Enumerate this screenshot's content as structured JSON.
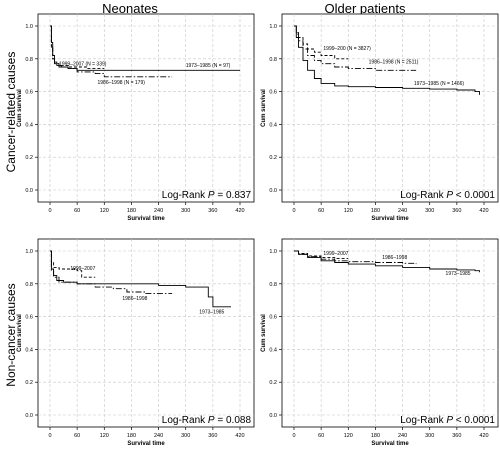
{
  "column_titles": [
    "Neonates",
    "Older patients"
  ],
  "row_titles": [
    "Cancer-related causes",
    "Non-cancer causes"
  ],
  "chart_data": [
    {
      "type": "line",
      "panel": "Neonates / Cancer-related causes",
      "xlabel": "Survival time",
      "ylabel": "Cum survival",
      "xlim": [
        0,
        420
      ],
      "ylim": [
        0,
        1.0
      ],
      "xticks": [
        0,
        60,
        120,
        180,
        240,
        300,
        360,
        420
      ],
      "yticks": [
        0.0,
        0.2,
        0.4,
        0.6,
        0.8,
        1.0
      ],
      "ytick_labels": [
        "0.0",
        "0.2",
        "0.4",
        "0.6",
        "0.8",
        "1.0"
      ],
      "grid": true,
      "annotation": {
        "prefix": "Log-Rank ",
        "p": "P",
        "suffix": " = 0.837"
      },
      "series": [
        {
          "name": "1973–1985 (N = 97)",
          "style": "solid",
          "x": [
            0,
            3,
            6,
            10,
            15,
            25,
            40,
            60,
            420
          ],
          "y": [
            1.0,
            0.9,
            0.82,
            0.78,
            0.76,
            0.75,
            0.74,
            0.73,
            0.73
          ]
        },
        {
          "name": "1986–1998 (N = 179)",
          "style": "dashdot",
          "x": [
            0,
            3,
            6,
            10,
            20,
            40,
            60,
            100,
            120,
            270
          ],
          "y": [
            1.0,
            0.88,
            0.8,
            0.77,
            0.75,
            0.74,
            0.72,
            0.71,
            0.69,
            0.69
          ]
        },
        {
          "name": "1999–2007 (N = 339)",
          "style": "dashed",
          "x": [
            0,
            3,
            6,
            10,
            20,
            40,
            80,
            120
          ],
          "y": [
            1.0,
            0.87,
            0.8,
            0.77,
            0.76,
            0.75,
            0.74,
            0.74
          ]
        }
      ],
      "labels": [
        {
          "text": "1999–2007 (N = 339)",
          "x": 20,
          "y": 0.76
        },
        {
          "text": "1986–1998 (N = 179)",
          "x": 105,
          "y": 0.645
        },
        {
          "text": "1973–1985 (N = 97)",
          "x": 300,
          "y": 0.75
        }
      ]
    },
    {
      "type": "line",
      "panel": "Older patients / Cancer-related causes",
      "xlabel": "Survival time",
      "ylabel": "Cum survival",
      "xlim": [
        0,
        420
      ],
      "ylim": [
        0,
        1.0
      ],
      "xticks": [
        0,
        60,
        120,
        180,
        240,
        300,
        360,
        420
      ],
      "yticks": [
        0.0,
        0.2,
        0.4,
        0.6,
        0.8,
        1.0
      ],
      "ytick_labels": [
        "0.0",
        "0.2",
        "0.4",
        "0.6",
        "0.8",
        "1.0"
      ],
      "grid": true,
      "annotation": {
        "prefix": "Log-Rank ",
        "p": "P",
        "suffix": " < 0.0001"
      },
      "series": [
        {
          "name": "1973–1985 (N = 1466)",
          "style": "solid",
          "x": [
            0,
            5,
            10,
            20,
            30,
            45,
            60,
            90,
            120,
            180,
            240,
            300,
            360,
            400,
            410
          ],
          "y": [
            1.0,
            0.93,
            0.87,
            0.79,
            0.73,
            0.68,
            0.65,
            0.635,
            0.63,
            0.625,
            0.62,
            0.615,
            0.61,
            0.6,
            0.58
          ]
        },
        {
          "name": "1986–1998 (N = 2511)",
          "style": "dashdot",
          "x": [
            0,
            5,
            10,
            20,
            30,
            45,
            60,
            90,
            120,
            180,
            240,
            270
          ],
          "y": [
            1.0,
            0.95,
            0.91,
            0.86,
            0.82,
            0.79,
            0.77,
            0.75,
            0.74,
            0.73,
            0.73,
            0.73
          ]
        },
        {
          "name": "1999–200 (N = 3827)",
          "style": "dashed",
          "x": [
            0,
            5,
            10,
            20,
            30,
            45,
            60,
            90,
            100,
            120
          ],
          "y": [
            1.0,
            0.96,
            0.93,
            0.89,
            0.86,
            0.84,
            0.82,
            0.8,
            0.8,
            0.8
          ]
        }
      ],
      "labels": [
        {
          "text": "1999–200 (N = 3827)",
          "x": 65,
          "y": 0.855
        },
        {
          "text": "1986–1998 (N = 2511)",
          "x": 165,
          "y": 0.77
        },
        {
          "text": "1973–1985 (N = 1466)",
          "x": 265,
          "y": 0.64
        }
      ]
    },
    {
      "type": "line",
      "panel": "Neonates / Non-cancer causes",
      "xlabel": "Survival time",
      "ylabel": "Cum survival",
      "xlim": [
        0,
        420
      ],
      "ylim": [
        0,
        1.0
      ],
      "xticks": [
        0,
        60,
        120,
        180,
        240,
        300,
        360,
        420
      ],
      "yticks": [
        0.0,
        0.2,
        0.4,
        0.6,
        0.8,
        1.0
      ],
      "ytick_labels": [
        "0.0",
        "0.2",
        "0.4",
        "0.6",
        "0.8",
        "1.0"
      ],
      "grid": true,
      "annotation": {
        "prefix": "Log-Rank ",
        "p": "P",
        "suffix": " = 0.088"
      },
      "series": [
        {
          "name": "1973–1985",
          "style": "solid",
          "x": [
            0,
            3,
            8,
            15,
            30,
            60,
            120,
            180,
            240,
            300,
            340,
            350,
            350,
            360,
            360,
            400
          ],
          "y": [
            1.0,
            0.89,
            0.85,
            0.82,
            0.81,
            0.8,
            0.8,
            0.8,
            0.79,
            0.78,
            0.78,
            0.78,
            0.72,
            0.72,
            0.66,
            0.66
          ]
        },
        {
          "name": "1986–1998",
          "style": "dashdot",
          "x": [
            0,
            3,
            8,
            20,
            60,
            100,
            140,
            170,
            210,
            270
          ],
          "y": [
            1.0,
            0.88,
            0.84,
            0.81,
            0.8,
            0.78,
            0.77,
            0.75,
            0.74,
            0.74
          ]
        },
        {
          "name": "1999–2007",
          "style": "dashed",
          "x": [
            0,
            3,
            8,
            20,
            40,
            60,
            70,
            100
          ],
          "y": [
            1.0,
            0.93,
            0.9,
            0.89,
            0.89,
            0.88,
            0.84,
            0.84
          ]
        }
      ],
      "labels": [
        {
          "text": "1999–2007",
          "x": 45,
          "y": 0.885
        },
        {
          "text": "1986–1998",
          "x": 160,
          "y": 0.7
        },
        {
          "text": "1973–1985",
          "x": 330,
          "y": 0.62
        }
      ]
    },
    {
      "type": "line",
      "panel": "Older patients / Non-cancer causes",
      "xlabel": "Survival time",
      "ylabel": "Cum survival",
      "xlim": [
        0,
        420
      ],
      "ylim": [
        0,
        1.0
      ],
      "xticks": [
        0,
        60,
        120,
        180,
        240,
        300,
        360,
        420
      ],
      "yticks": [
        0.0,
        0.2,
        0.4,
        0.6,
        0.8,
        1.0
      ],
      "ytick_labels": [
        "0.0",
        "0.2",
        "0.4",
        "0.6",
        "0.8",
        "1.0"
      ],
      "grid": true,
      "annotation": {
        "prefix": "Log-Rank ",
        "p": "P",
        "suffix": " < 0.0001"
      },
      "series": [
        {
          "name": "1973–1985",
          "style": "solid",
          "x": [
            0,
            10,
            30,
            60,
            90,
            120,
            180,
            240,
            300,
            360,
            400,
            410
          ],
          "y": [
            1.0,
            0.98,
            0.96,
            0.94,
            0.93,
            0.92,
            0.91,
            0.9,
            0.89,
            0.885,
            0.88,
            0.87
          ]
        },
        {
          "name": "1986–1998",
          "style": "dashdot",
          "x": [
            0,
            10,
            30,
            60,
            90,
            120,
            180,
            240,
            270
          ],
          "y": [
            1.0,
            0.98,
            0.965,
            0.95,
            0.94,
            0.935,
            0.93,
            0.925,
            0.92
          ]
        },
        {
          "name": "1999–2007",
          "style": "dashed",
          "x": [
            0,
            10,
            30,
            60,
            90,
            120
          ],
          "y": [
            1.0,
            0.985,
            0.97,
            0.96,
            0.955,
            0.955
          ]
        }
      ],
      "labels": [
        {
          "text": "1999–2007",
          "x": 65,
          "y": 0.975
        },
        {
          "text": "1986–1998",
          "x": 195,
          "y": 0.95
        },
        {
          "text": "1973–1985",
          "x": 335,
          "y": 0.855
        }
      ]
    }
  ]
}
